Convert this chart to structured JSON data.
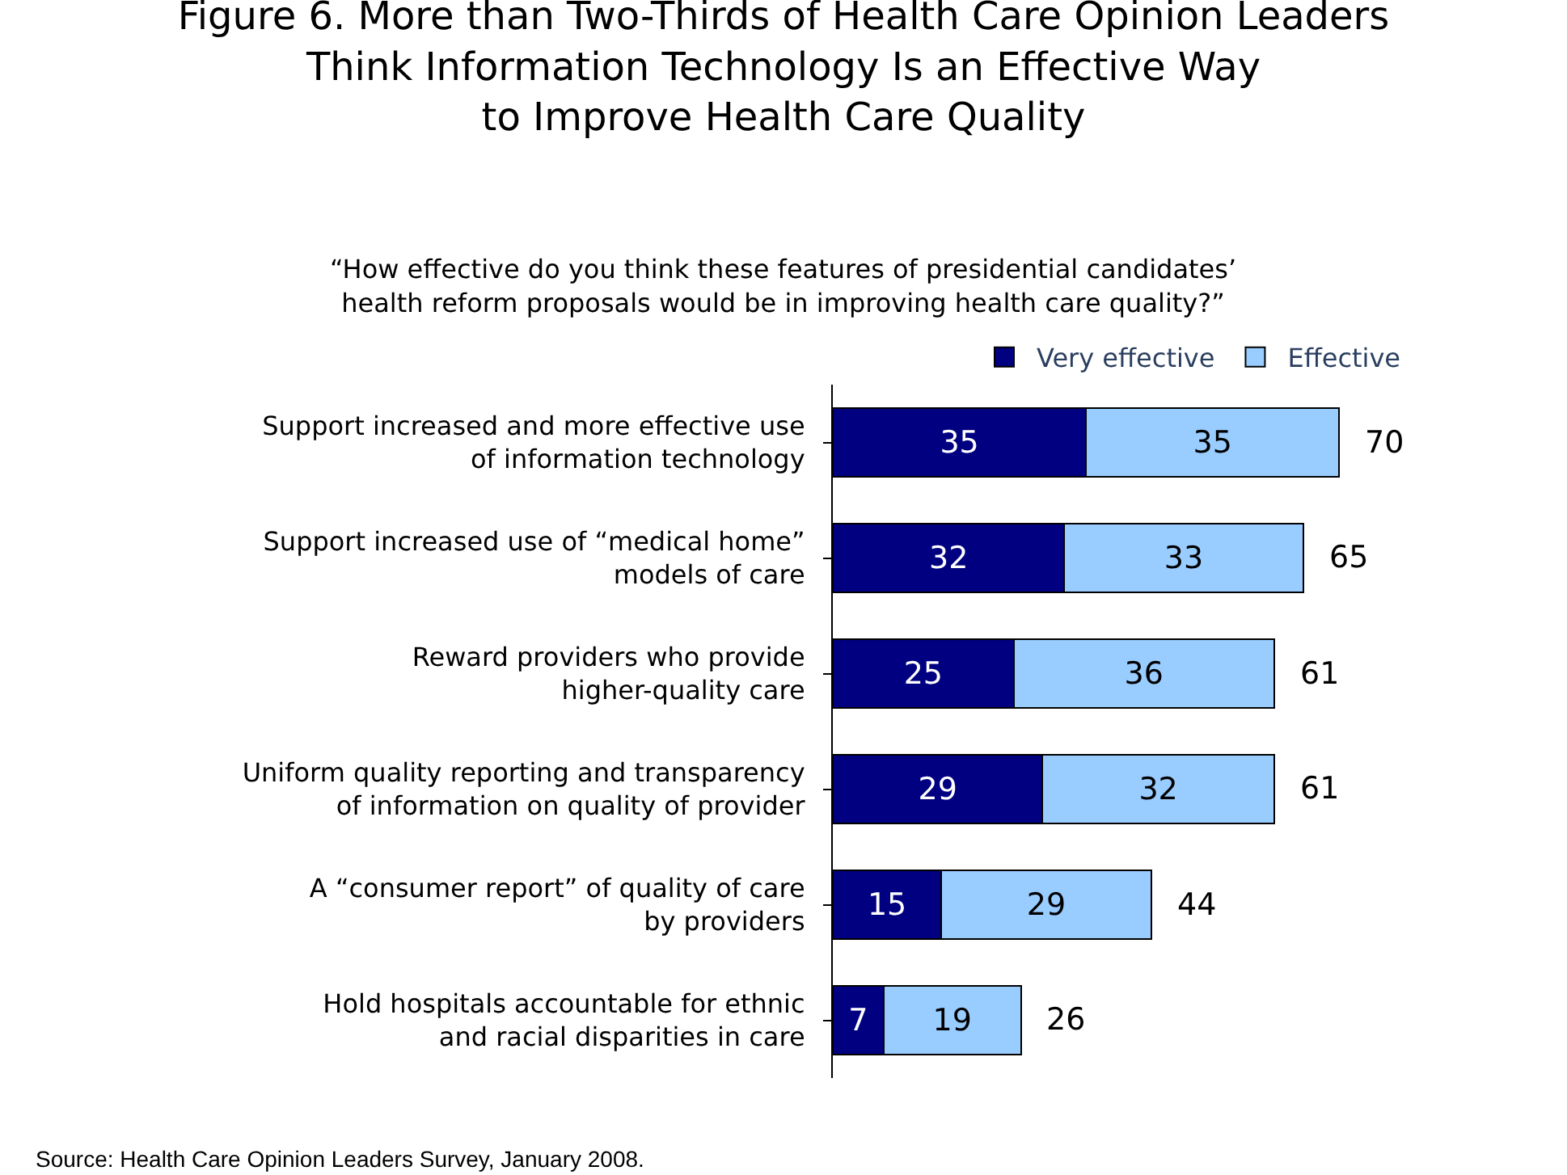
{
  "chart_data": {
    "type": "bar",
    "orientation": "horizontal",
    "stacked": true,
    "data_labels": true,
    "title": "Figure 6. More than Two-Thirds of Health Care Opinion Leaders\nThink Information Technology Is an Effective Way\nto Improve Health Care Quality",
    "subtitle": "“How effective do you think these features of presidential candidates’\nhealth reform proposals would be in improving health care quality?”",
    "categories": [
      "Support increased and more effective use\nof information technology",
      "Support increased use of “medical home”\nmodels of care",
      "Reward providers who provide\nhigher-quality care",
      "Uniform quality reporting and transparency\nof information on quality of provider",
      "A “consumer report” of quality of care\nby providers",
      "Hold hospitals accountable for ethnic\nand racial disparities in care"
    ],
    "series": [
      {
        "name": "Very effective",
        "color": "#000080",
        "values": [
          35,
          32,
          25,
          29,
          15,
          7
        ]
      },
      {
        "name": "Effective",
        "color": "#99ccff",
        "values": [
          35,
          33,
          36,
          32,
          29,
          19
        ]
      }
    ],
    "totals": [
      "70",
      "65",
      "61",
      "61",
      "44",
      "26"
    ],
    "legend": "top right",
    "annotations": [
      "Source: Health Care Opinion Leaders Survey, January 2008."
    ]
  }
}
